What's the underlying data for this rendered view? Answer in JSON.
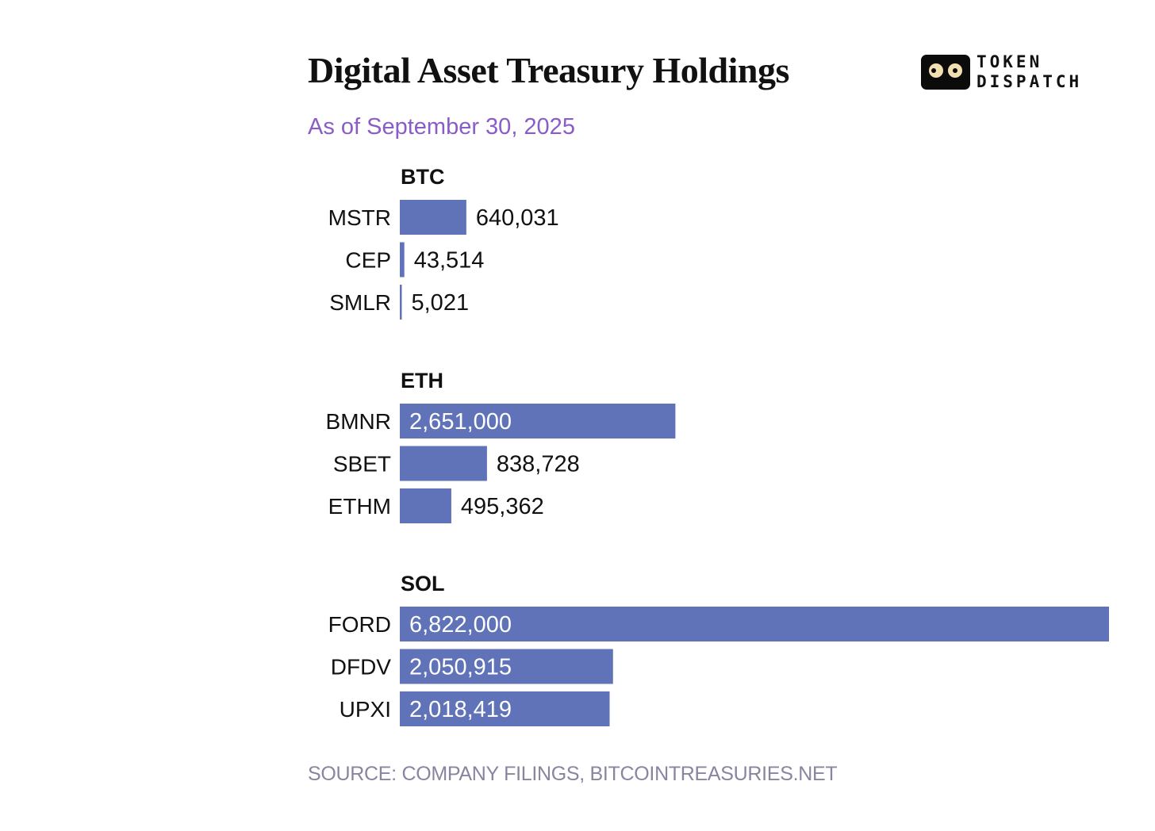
{
  "header": {
    "title": "Digital Asset Treasury Holdings",
    "subtitle": "As of September 30, 2025",
    "logo_line1": "TOKEN",
    "logo_line2": "DISPATCH"
  },
  "footer": {
    "source": "SOURCE: COMPANY FILINGS, BITCOINTREASURIES.NET"
  },
  "colors": {
    "bar": "#6073b8",
    "subtitle": "#8a5cc7",
    "source": "#8a84a0",
    "text": "#111111"
  },
  "chart_data": {
    "type": "bar",
    "orientation": "horizontal",
    "title": "Digital Asset Treasury Holdings",
    "subtitle": "As of September 30, 2025",
    "xlabel": "",
    "ylabel": "",
    "grid": false,
    "groups": [
      {
        "name": "BTC",
        "categories": [
          "MSTR",
          "CEP",
          "SMLR"
        ],
        "values": [
          640031,
          43514,
          5021
        ],
        "labels": [
          "640,031",
          "43,514",
          "5,021"
        ]
      },
      {
        "name": "ETH",
        "categories": [
          "BMNR",
          "SBET",
          "ETHM"
        ],
        "values": [
          2651000,
          838728,
          495362
        ],
        "labels": [
          "2,651,000",
          "838,728",
          "495,362"
        ]
      },
      {
        "name": "SOL",
        "categories": [
          "FORD",
          "DFDV",
          "UPXI"
        ],
        "values": [
          6822000,
          2050915,
          2018419
        ],
        "labels": [
          "6,822,000",
          "2,050,915",
          "2,018,419"
        ]
      }
    ],
    "xlim": [
      0,
      6822000
    ]
  }
}
